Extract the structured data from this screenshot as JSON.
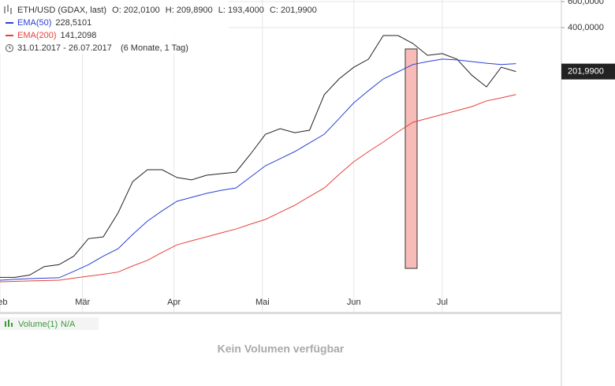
{
  "chart_data": {
    "type": "line",
    "title": "ETH/USD (GDAX, last)",
    "ohlc": [
      {
        "value": 202.01,
        "label": "O: 202,0100"
      },
      {
        "value": 209.89,
        "label": "H: 209,8900"
      },
      {
        "value": 193.4,
        "label": "L: 193,4000"
      },
      {
        "value": 201.99,
        "label": "C: 201,9900"
      }
    ],
    "date_range": "31.01.2017 - 26.07.2017",
    "period": "(6 Monate, 1 Tag)",
    "log_scale": true,
    "grid": true,
    "x": [
      0,
      5,
      10,
      15,
      20,
      25,
      30,
      35,
      40,
      45,
      50,
      55,
      60,
      65,
      70,
      75,
      80,
      85,
      90,
      95,
      100,
      105,
      110,
      115,
      120,
      125,
      130,
      135,
      140,
      145,
      150,
      155,
      160,
      165,
      170,
      175
    ],
    "xlim": [
      0,
      190.4
    ],
    "xticks": [
      {
        "value": 0,
        "label": "Feb"
      },
      {
        "value": 28,
        "label": "Mär"
      },
      {
        "value": 59,
        "label": "Apr"
      },
      {
        "value": 89,
        "label": "Mai"
      },
      {
        "value": 120,
        "label": "Jun"
      },
      {
        "value": 150,
        "label": "Jul"
      }
    ],
    "ylim": [
      4.8,
      615
    ],
    "yticks": [
      {
        "value": 400,
        "label": "400,0000"
      },
      {
        "value": 600,
        "label": "600,0000"
      }
    ],
    "series": [
      {
        "name": "ETH/USD",
        "color": "#222222",
        "last": {
          "value": 201.99,
          "label": "201,9900"
        },
        "values": [
          8.2,
          8.2,
          8.5,
          9.7,
          10.0,
          11.4,
          15.0,
          15.4,
          22.3,
          36.4,
          43.8,
          43.8,
          38.8,
          37.4,
          40.2,
          41.2,
          42.2,
          56,
          76,
          83,
          78,
          81,
          141,
          180,
          216,
          245,
          354,
          354,
          313,
          260,
          267,
          245,
          191,
          159,
          216,
          201.99
        ]
      },
      {
        "name": "EMA(50)",
        "color": "#2b3fd6",
        "last": {
          "value": 228.5101,
          "label": "228,5101"
        },
        "values": [
          7.85,
          7.95,
          8.04,
          8.1,
          8.15,
          9.0,
          10.0,
          11.4,
          12.8,
          16.0,
          19.7,
          23.1,
          26.8,
          28.5,
          30.3,
          31.8,
          33.0,
          39.2,
          46.6,
          52.0,
          58.1,
          66.5,
          76.2,
          97,
          124,
          150,
          180,
          201,
          225,
          236,
          245,
          242,
          236,
          230,
          225,
          228.51
        ]
      },
      {
        "name": "EMA(200)",
        "color": "#e8413a",
        "last": {
          "value": 141.2098,
          "label": "141,2098"
        },
        "values": [
          7.66,
          7.7,
          7.76,
          7.8,
          7.85,
          8.1,
          8.35,
          8.6,
          8.9,
          9.8,
          10.7,
          12.1,
          13.6,
          14.5,
          15.4,
          16.4,
          17.4,
          18.8,
          20.2,
          22.6,
          25.2,
          28.9,
          33.0,
          40.7,
          49.6,
          58.1,
          67.4,
          79,
          91.6,
          97.4,
          103.6,
          110,
          117,
          128,
          134,
          141.21
        ]
      }
    ],
    "volume_panel": {
      "title": "Volume(1)",
      "value": "N/A",
      "message": "Kein Volumen verfügbar"
    }
  }
}
